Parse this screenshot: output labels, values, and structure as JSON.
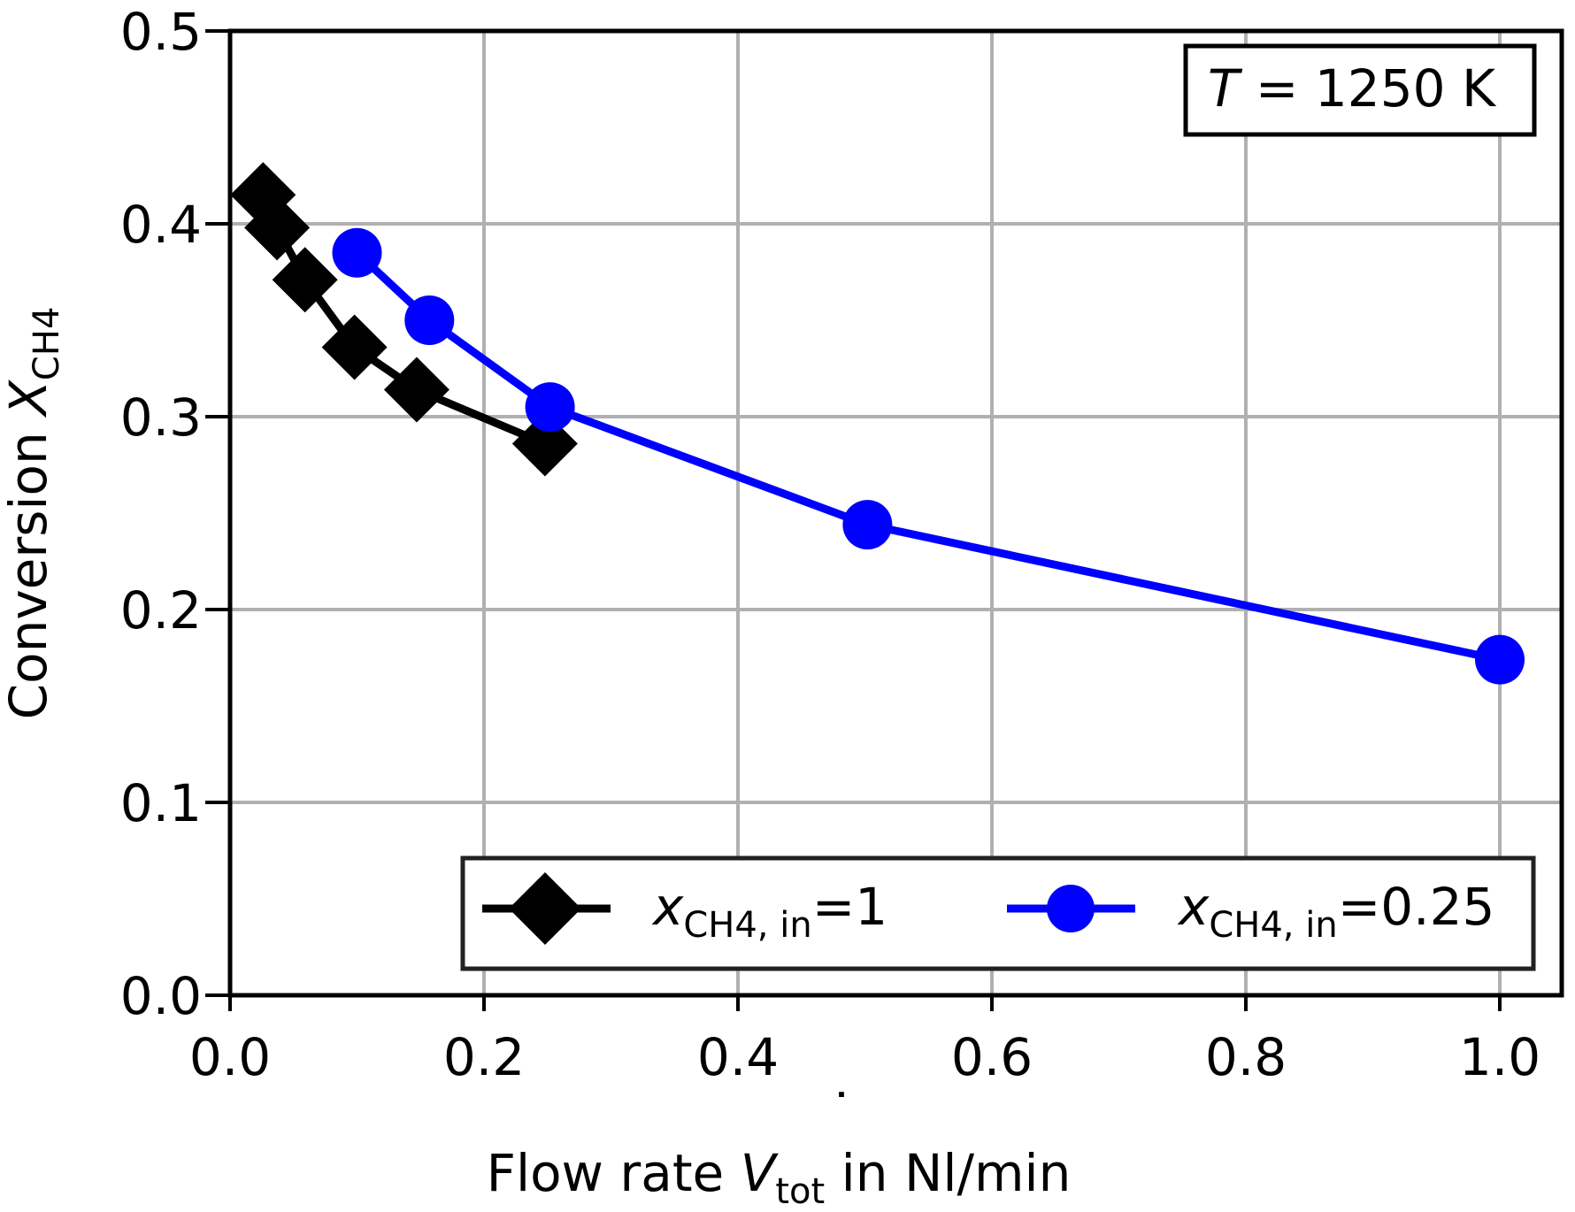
{
  "chart_data": {
    "type": "line",
    "title": "",
    "xlabel": {
      "prefix": "Flow rate ",
      "symbol": "V",
      "sub": "tot",
      "suffix": " in Nl/min"
    },
    "ylabel": {
      "prefix": "Conversion ",
      "symbol": "X",
      "sub": "CH4"
    },
    "xlim": [
      0.0,
      1.05
    ],
    "ylim": [
      0.0,
      0.5
    ],
    "xticks": [
      "0.0",
      "0.2",
      "0.4",
      "0.6",
      "0.8",
      "1.0"
    ],
    "yticks": [
      "0.0",
      "0.1",
      "0.2",
      "0.3",
      "0.4",
      "0.5"
    ],
    "grid": true,
    "annotation": {
      "symbol": "T",
      "text": " = 1250 K",
      "placement": "top-right"
    },
    "legend_placement": "lower-right",
    "series": [
      {
        "name": "x_CH4,in=1",
        "legend": {
          "symbol": "x",
          "sub": "CH4, in",
          "value": "=1"
        },
        "color": "#000000",
        "marker": "diamond",
        "x": [
          0.026,
          0.037,
          0.059,
          0.098,
          0.147,
          0.248
        ],
        "y": [
          0.415,
          0.398,
          0.371,
          0.336,
          0.314,
          0.286
        ]
      },
      {
        "name": "x_CH4,in=0.25",
        "legend": {
          "symbol": "x",
          "sub": "CH4, in",
          "value": "=0.25"
        },
        "color": "#0000ff",
        "marker": "circle",
        "x": [
          0.1,
          0.157,
          0.252,
          0.502,
          1.0
        ],
        "y": [
          0.385,
          0.35,
          0.305,
          0.244,
          0.174
        ]
      }
    ]
  }
}
